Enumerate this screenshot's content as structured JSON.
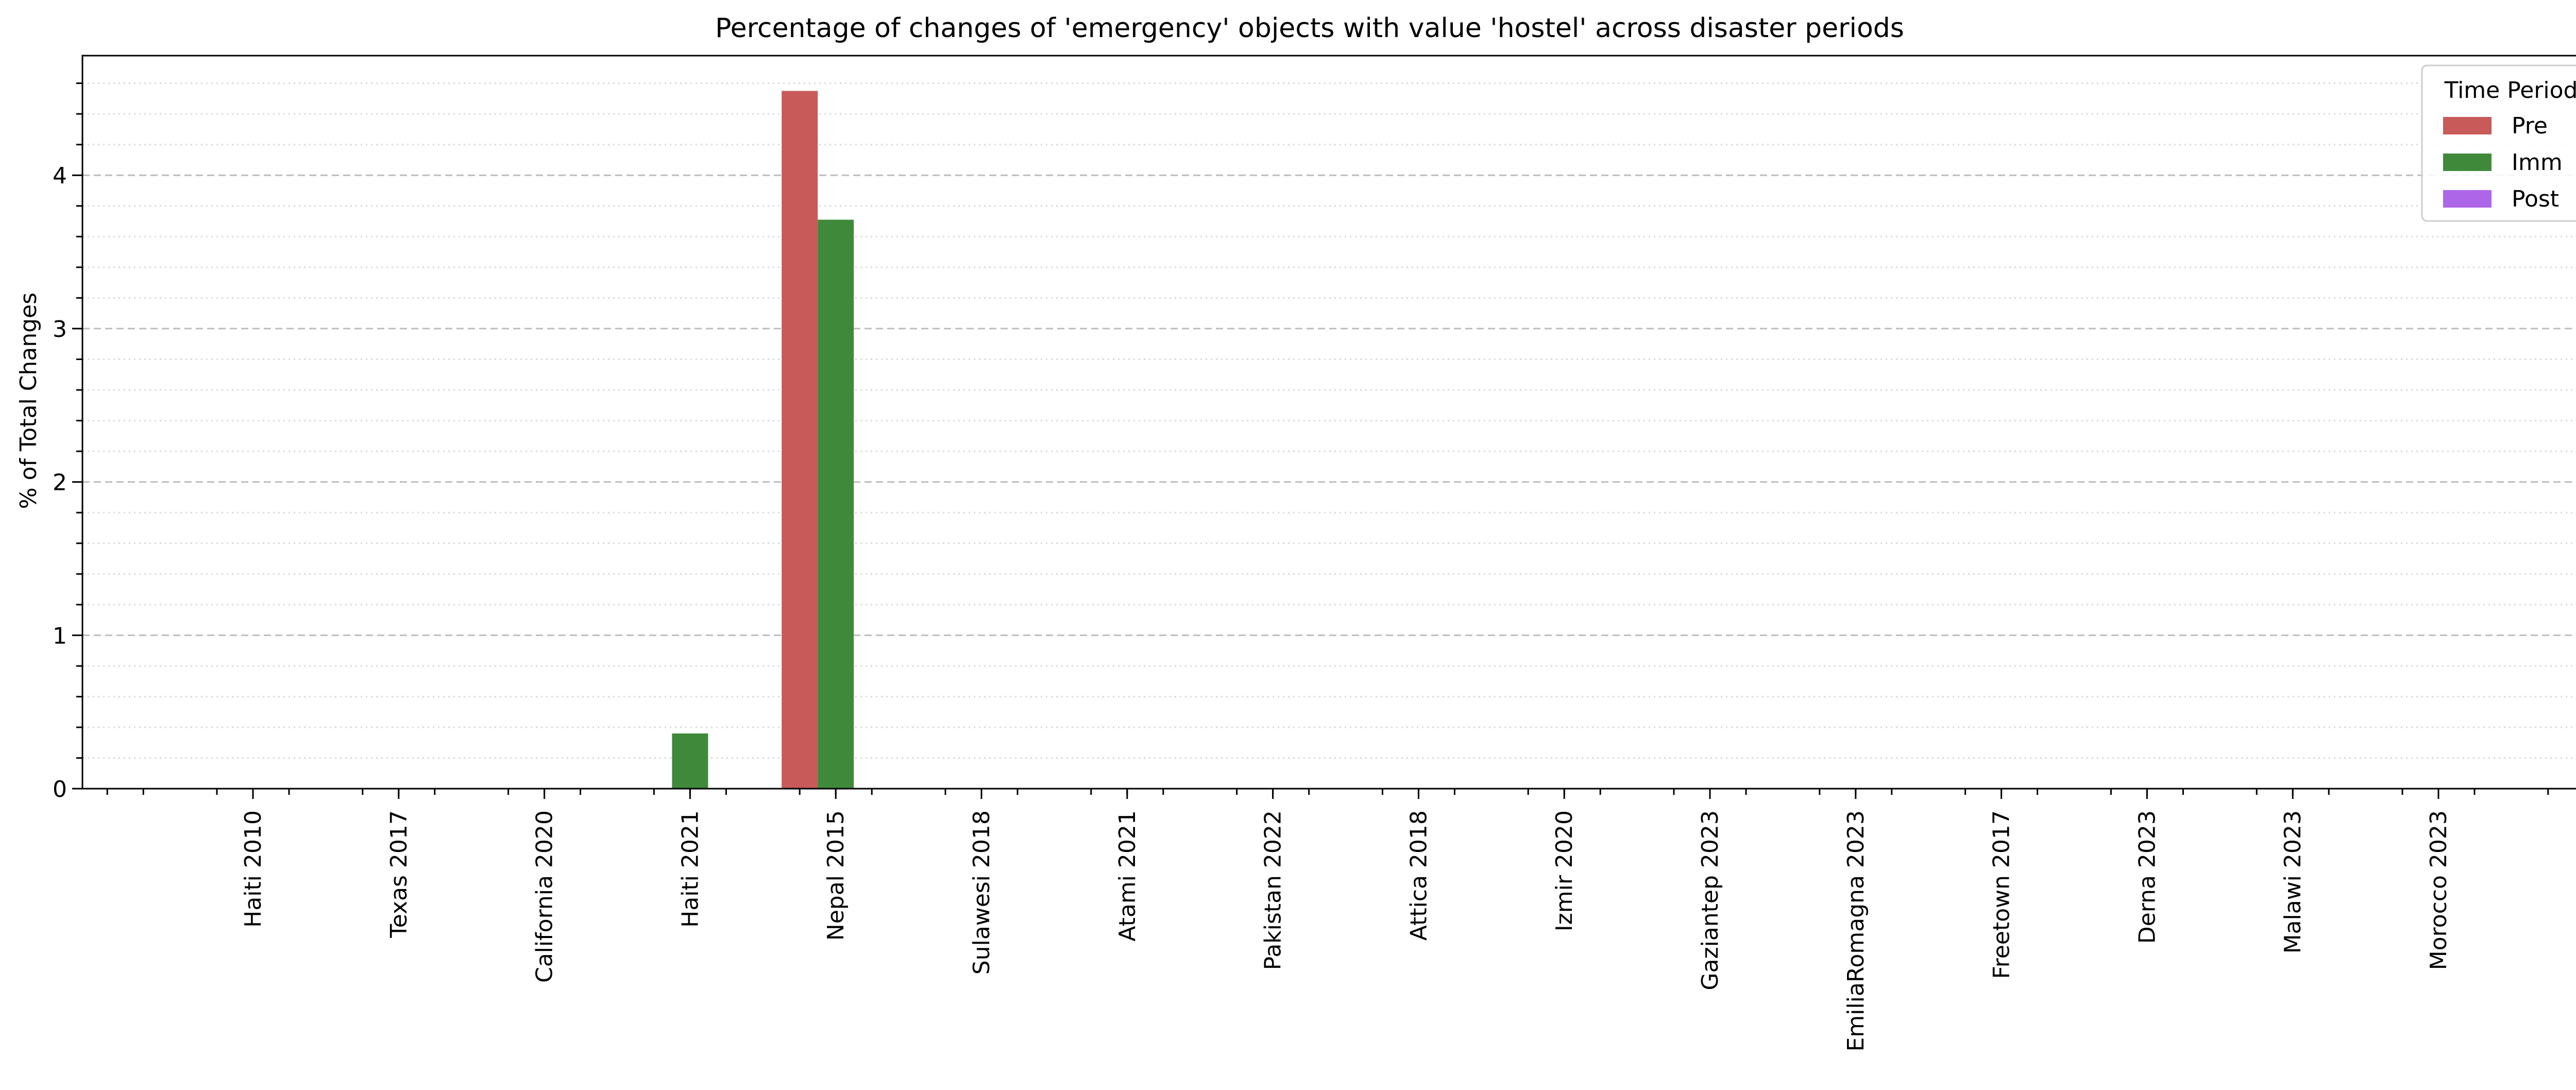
{
  "chart_data": {
    "type": "bar",
    "title": "Percentage of changes of 'emergency' objects with value 'hostel' across disaster periods",
    "xlabel": "",
    "ylabel": "% of Total Changes",
    "ylim": [
      0,
      4.78
    ],
    "yticks": [
      0,
      1,
      2,
      3,
      4
    ],
    "ytick_labels": [
      "0",
      "1",
      "2",
      "3",
      "4"
    ],
    "minor_ytick_step": 0.2,
    "grid": true,
    "legend": {
      "title": "Time Period",
      "placement": "top-right"
    },
    "categories": [
      "Haiti 2010",
      "Texas 2017",
      "California 2020",
      "Haiti 2021",
      "Nepal 2015",
      "Sulawesi 2018",
      "Atami 2021",
      "Pakistan 2022",
      "Attica 2018",
      "Izmir 2020",
      "Gaziantep 2023",
      "EmiliaRomagna 2023",
      "Freetown 2017",
      "Derna 2023",
      "Malawi 2023",
      "Morocco 2023"
    ],
    "series": [
      {
        "name": "Pre",
        "color": "#c85a5a",
        "values": [
          0,
          0,
          0,
          0,
          4.55,
          0,
          0,
          0,
          0,
          0,
          0,
          0,
          0,
          0,
          0,
          0
        ]
      },
      {
        "name": "Imm",
        "color": "#3f8a3a",
        "values": [
          0,
          0,
          0,
          0.36,
          3.71,
          0,
          0,
          0,
          0,
          0,
          0,
          0,
          0,
          0,
          0,
          0
        ]
      },
      {
        "name": "Post",
        "color": "#ad66e8",
        "values": [
          0,
          0,
          0,
          0,
          0,
          0,
          0,
          0,
          0,
          0,
          0,
          0,
          0,
          0,
          0,
          0
        ]
      }
    ]
  }
}
